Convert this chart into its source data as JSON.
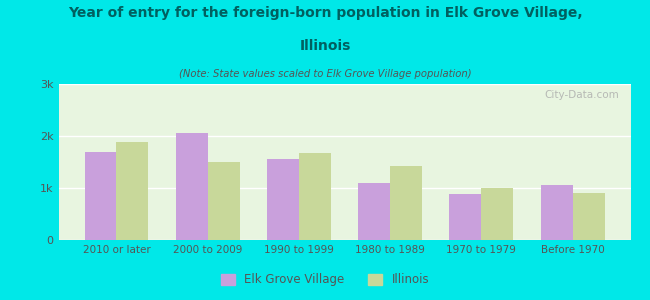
{
  "title_line1": "Year of entry for the foreign-born population in Elk Grove Village,",
  "title_line2": "Illinois",
  "subtitle": "(Note: State values scaled to Elk Grove Village population)",
  "categories": [
    "2010 or later",
    "2000 to 2009",
    "1990 to 1999",
    "1980 to 1989",
    "1970 to 1979",
    "Before 1970"
  ],
  "egv_values": [
    1700,
    2050,
    1550,
    1100,
    880,
    1050
  ],
  "il_values": [
    1880,
    1500,
    1680,
    1430,
    1000,
    900
  ],
  "egv_color": "#c9a0dc",
  "il_color": "#c8d89a",
  "background_color": "#00e8e8",
  "chart_bg": "#e8f5e0",
  "ylim": [
    0,
    3000
  ],
  "yticks": [
    0,
    1000,
    2000,
    3000
  ],
  "ytick_labels": [
    "0",
    "1k",
    "2k",
    "3k"
  ],
  "bar_width": 0.35,
  "legend_labels": [
    "Elk Grove Village",
    "Illinois"
  ],
  "watermark": "City-Data.com",
  "title_color": "#006060",
  "subtitle_color": "#555555",
  "tick_label_color": "#555555"
}
